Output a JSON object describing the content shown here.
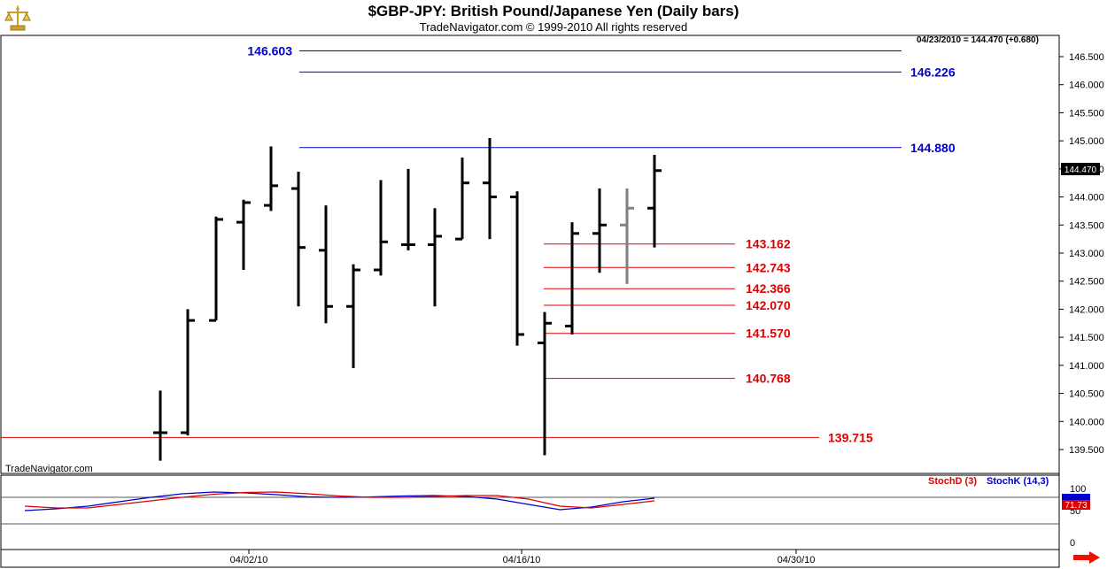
{
  "header": {
    "title": "$GBP-JPY:  British Pound/Japanese Yen  (Daily bars)",
    "subtitle": "TradeNavigator.com © 1999-2010 All rights reserved"
  },
  "info": {
    "quote": "04/23/2010 = 144.470 (+0.680)",
    "watermark": "TradeNavigator.com"
  },
  "colors": {
    "blue": "#0000cc",
    "red": "#dd0000",
    "bar": "#000000",
    "grey_bar": "#808080"
  },
  "chart_data": {
    "type": "bar",
    "price_axis": {
      "ticks": [
        "146.500",
        "146.000",
        "145.500",
        "145.000",
        "144.500",
        "144.000",
        "143.500",
        "143.000",
        "142.500",
        "142.000",
        "141.500",
        "141.000",
        "140.500",
        "140.000",
        "139.500"
      ],
      "range": [
        139.3,
        146.85
      ],
      "last_label": "144.470",
      "last_value": 144.47
    },
    "date_axis": {
      "labels": [
        "04/02/10",
        "04/16/10",
        "04/30/10"
      ]
    },
    "bars": [
      {
        "x": 181,
        "high": 140.55,
        "low": 139.3,
        "open": 139.8,
        "close": 139.8
      },
      {
        "x": 212,
        "high": 142.0,
        "low": 139.75,
        "open": 139.8,
        "close": 141.8
      },
      {
        "x": 244,
        "high": 143.65,
        "low": 141.8,
        "open": 141.8,
        "close": 143.6
      },
      {
        "x": 275,
        "high": 143.95,
        "low": 142.7,
        "open": 143.55,
        "close": 143.9
      },
      {
        "x": 306,
        "high": 144.9,
        "low": 143.75,
        "open": 143.85,
        "close": 144.2
      },
      {
        "x": 337,
        "high": 144.45,
        "low": 142.05,
        "open": 144.15,
        "close": 143.1
      },
      {
        "x": 368,
        "high": 143.85,
        "low": 141.75,
        "open": 143.05,
        "close": 142.05
      },
      {
        "x": 399,
        "high": 142.8,
        "low": 140.95,
        "open": 142.05,
        "close": 142.7
      },
      {
        "x": 430,
        "high": 144.3,
        "low": 142.6,
        "open": 142.7,
        "close": 143.2
      },
      {
        "x": 461,
        "high": 144.5,
        "low": 143.05,
        "open": 143.15,
        "close": 143.15
      },
      {
        "x": 491,
        "high": 143.8,
        "low": 142.05,
        "open": 143.15,
        "close": 143.3
      },
      {
        "x": 522,
        "high": 144.7,
        "low": 143.25,
        "open": 143.25,
        "close": 144.25
      },
      {
        "x": 553,
        "high": 145.05,
        "low": 143.25,
        "open": 144.25,
        "close": 144.0
      },
      {
        "x": 584,
        "high": 144.1,
        "low": 141.35,
        "open": 144.0,
        "close": 141.55
      },
      {
        "x": 615,
        "high": 141.95,
        "low": 139.4,
        "open": 141.4,
        "close": 141.75
      },
      {
        "x": 646,
        "high": 143.55,
        "low": 141.55,
        "open": 141.7,
        "close": 143.35
      },
      {
        "x": 677,
        "high": 144.15,
        "low": 142.65,
        "open": 143.35,
        "close": 143.5
      },
      {
        "x": 708,
        "high": 144.15,
        "low": 142.45,
        "open": 143.5,
        "close": 143.8,
        "grey": true
      },
      {
        "x": 739,
        "high": 144.75,
        "low": 143.1,
        "open": 143.8,
        "close": 144.47
      }
    ],
    "levels": [
      {
        "value": 146.603,
        "label": "146.603",
        "color": "blue",
        "label_side": "left"
      },
      {
        "value": 146.226,
        "label": "146.226",
        "color": "blue",
        "label_side": "right"
      },
      {
        "value": 144.88,
        "label": "144.880",
        "color": "blue",
        "label_side": "right"
      },
      {
        "value": 143.162,
        "label": "143.162",
        "color": "red",
        "label_side": "right"
      },
      {
        "value": 142.743,
        "label": "142.743",
        "color": "red",
        "label_side": "right"
      },
      {
        "value": 142.366,
        "label": "142.366",
        "color": "red",
        "label_side": "right"
      },
      {
        "value": 142.07,
        "label": "142.070",
        "color": "red",
        "label_side": "right"
      },
      {
        "value": 141.57,
        "label": "141.570",
        "color": "red",
        "label_side": "right"
      },
      {
        "value": 140.768,
        "label": "140.768",
        "color": "red",
        "label_side": "right"
      },
      {
        "value": 139.715,
        "label": "139.715",
        "color": "red",
        "label_side": "right"
      }
    ],
    "stochastic": {
      "legend": [
        "StochD (3)",
        "StochK (14,3)"
      ],
      "ticks": [
        "100",
        "50",
        "0"
      ],
      "range": [
        0,
        100
      ],
      "value_labels": [
        "71.73"
      ],
      "stoch_d": [
        60,
        56,
        56,
        64,
        72,
        80,
        87,
        91,
        92,
        88,
        83,
        80,
        80,
        82,
        84,
        84,
        76,
        60,
        56,
        64,
        72
      ],
      "stoch_k": [
        50,
        54,
        60,
        70,
        80,
        88,
        92,
        90,
        86,
        81,
        80,
        81,
        83,
        84,
        82,
        76,
        64,
        52,
        58,
        70,
        78
      ]
    }
  }
}
